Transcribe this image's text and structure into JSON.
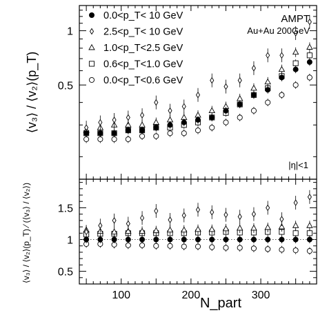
{
  "chart_data": [
    {
      "type": "scatter",
      "panel": "top",
      "ylabel": "⟨v₃⟩ / ⟨v₂⟩(p_T)",
      "xlim": [
        40,
        380
      ],
      "ylim": [
        0.15,
        1.38
      ],
      "yscale": "log",
      "yticks": [
        0.5,
        1
      ],
      "ytick_labels": [
        "0.5",
        "1"
      ],
      "annotations": [
        "AMPT",
        "Au+Au 200GeV",
        "|η|<1"
      ],
      "legend_position": "top-left",
      "x": [
        50,
        70,
        90,
        110,
        130,
        150,
        170,
        190,
        210,
        230,
        250,
        270,
        290,
        310,
        330,
        350,
        370
      ],
      "series": [
        {
          "name": "0.0<p_T< 10 GeV",
          "marker": "filled-circle",
          "values": [
            0.27,
            0.27,
            0.27,
            0.28,
            0.28,
            0.29,
            0.3,
            0.31,
            0.32,
            0.33,
            0.36,
            0.39,
            0.44,
            0.47,
            0.55,
            0.61,
            0.67
          ]
        },
        {
          "name": "2.5<p_T< 10 GeV",
          "marker": "open-diamond",
          "values": [
            0.29,
            0.31,
            0.32,
            0.33,
            0.34,
            0.4,
            0.36,
            0.38,
            0.44,
            0.53,
            0.49,
            0.53,
            0.62,
            0.73,
            0.73,
            0.97,
            1.12
          ]
        },
        {
          "name": "1.0<p_T<2.5 GeV",
          "marker": "open-triangle",
          "values": [
            0.28,
            0.29,
            0.3,
            0.3,
            0.3,
            0.31,
            0.32,
            0.33,
            0.34,
            0.36,
            0.38,
            0.42,
            0.48,
            0.52,
            0.61,
            0.76,
            0.81
          ]
        },
        {
          "name": "0.6<p_T<1.0 GeV",
          "marker": "open-square",
          "values": [
            0.27,
            0.27,
            0.27,
            0.28,
            0.28,
            0.29,
            0.29,
            0.3,
            0.31,
            0.33,
            0.35,
            0.39,
            0.44,
            0.48,
            0.56,
            0.66,
            0.73
          ]
        },
        {
          "name": "0.0<p_T<0.6 GeV",
          "marker": "open-circle",
          "values": [
            0.25,
            0.25,
            0.25,
            0.25,
            0.26,
            0.26,
            0.27,
            0.27,
            0.28,
            0.29,
            0.31,
            0.33,
            0.36,
            0.4,
            0.44,
            0.5,
            0.55
          ]
        }
      ]
    },
    {
      "type": "scatter",
      "panel": "bottom",
      "xlabel": "N_part",
      "ylabel": "⟨v₃⟩ / ⟨v₂⟩(p_T) ⁄ (⟨v₃⟩ / ⟨v₂⟩)",
      "xlim": [
        40,
        380
      ],
      "ylim": [
        0.3,
        1.95
      ],
      "xticks": [
        100,
        200,
        300
      ],
      "xtick_labels": [
        "100",
        "200",
        "300"
      ],
      "yticks": [
        0.5,
        1,
        1.5
      ],
      "ytick_labels": [
        "0.5",
        "1",
        "1.5"
      ],
      "reference_line": 1,
      "x": [
        50,
        70,
        90,
        110,
        130,
        150,
        170,
        190,
        210,
        230,
        250,
        270,
        290,
        310,
        330,
        350,
        370
      ],
      "series": [
        {
          "name": "0.0<p_T< 10 GeV",
          "marker": "filled-circle",
          "values": [
            1.0,
            1.0,
            1.0,
            1.0,
            1.0,
            1.0,
            1.0,
            1.0,
            1.0,
            1.0,
            1.0,
            1.0,
            1.0,
            1.0,
            1.0,
            1.0,
            1.0
          ]
        },
        {
          "name": "2.5<p_T< 10 GeV",
          "marker": "open-diamond",
          "values": [
            1.12,
            1.22,
            1.3,
            1.25,
            1.34,
            1.45,
            1.31,
            1.38,
            1.47,
            1.43,
            1.39,
            1.36,
            1.4,
            1.5,
            1.32,
            1.58,
            1.67
          ]
        },
        {
          "name": "1.0<p_T<2.5 GeV",
          "marker": "open-triangle",
          "values": [
            1.15,
            1.13,
            1.12,
            1.13,
            1.13,
            1.14,
            1.15,
            1.15,
            1.16,
            1.16,
            1.17,
            1.18,
            1.18,
            1.19,
            1.2,
            1.22,
            1.22
          ]
        },
        {
          "name": "0.6<p_T<1.0 GeV",
          "marker": "open-square",
          "values": [
            1.08,
            1.09,
            1.09,
            1.1,
            1.1,
            1.1,
            1.1,
            1.1,
            1.11,
            1.11,
            1.12,
            1.11,
            1.11,
            1.12,
            1.12,
            1.1,
            1.1
          ]
        },
        {
          "name": "0.0<p_T<0.6 GeV",
          "marker": "open-circle",
          "values": [
            0.93,
            0.93,
            0.92,
            0.91,
            0.91,
            0.9,
            0.9,
            0.89,
            0.89,
            0.88,
            0.87,
            0.87,
            0.86,
            0.85,
            0.84,
            0.83,
            0.82
          ]
        }
      ]
    }
  ]
}
